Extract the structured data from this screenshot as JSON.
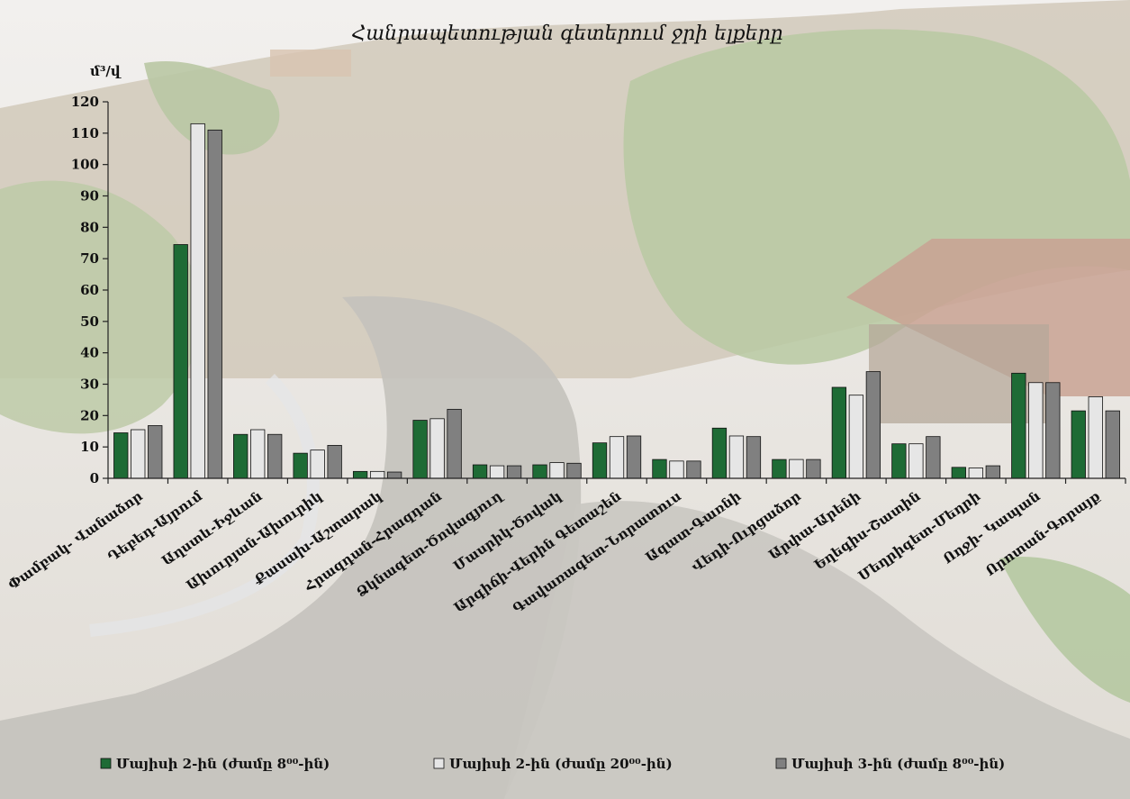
{
  "chart_data": {
    "type": "bar",
    "title": "Հանրապետության գետերում ջրի ելքերը",
    "ylabel": "մ³/վ",
    "xlabel": "",
    "ylim": [
      0,
      120
    ],
    "ytick_step": 10,
    "grid": false,
    "legend_position": "bottom",
    "categories": [
      "Փամբակ- Վանաձոր",
      "Դեբեդ-Այրում",
      "Աղստև-Իջևան",
      "Ախուրյան-Ախուրիկ",
      "Քասախ-Աշտարակ",
      "Հրազդան-Հրազդան",
      "Ձկնագետ-Ծովագյուղ",
      "Մասրիկ-Ծովակ",
      "Արգիճի-Վերին Գետաշեն",
      "Գավառագետ-Նորատուս",
      "Ազատ-Գառնի",
      "Վեդի-Ուրցաձոր",
      "Արփա-Արենի",
      "Եղեգիս-Շատին",
      "Մեղրիգետ-Մեղրի",
      "Ողջի- Կապան",
      "Որոտան-Գորայք"
    ],
    "series": [
      {
        "name": "Մայիսի 2-ին (ժամը 8⁰⁰-ին)",
        "color": "#1e6b35",
        "values": [
          14.5,
          74.5,
          14,
          8,
          2.2,
          18.5,
          4.3,
          4.3,
          11.3,
          6,
          16,
          6,
          29,
          11,
          3.5,
          33.5,
          21.5
        ]
      },
      {
        "name": "Մայիսի 2-ին (ժամը 20⁰⁰-ին)",
        "color": "#e6e6e6",
        "values": [
          15.5,
          113,
          15.5,
          9,
          2.2,
          19,
          4,
          5,
          13.3,
          5.5,
          13.5,
          6,
          26.5,
          11,
          3.3,
          30.5,
          26
        ]
      },
      {
        "name": "Մայիսի 3-ին (ժամը 8⁰⁰-ին)",
        "color": "#808080",
        "values": [
          16.8,
          111,
          14,
          10.5,
          2,
          22,
          4,
          4.8,
          13.5,
          5.5,
          13.3,
          6,
          34,
          13.3,
          4,
          30.5,
          21.5
        ]
      }
    ]
  }
}
